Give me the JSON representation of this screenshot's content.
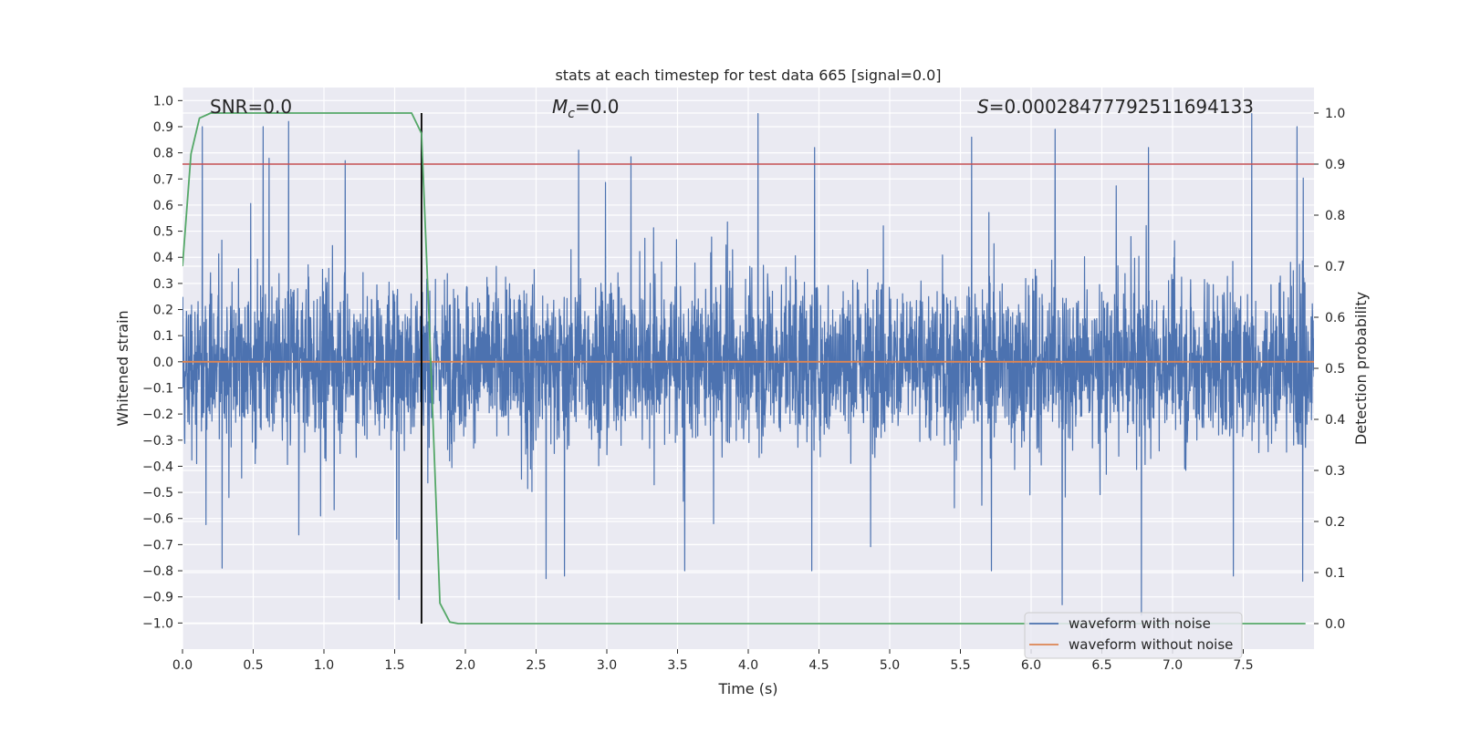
{
  "chart_data": {
    "type": "line",
    "title": "stats at each timestep for test data 665 [signal=0.0]",
    "xlabel": "Time (s)",
    "ylabel": "Whitened strain",
    "y2label": "Detection probability",
    "xlim": [
      0.0,
      8.0
    ],
    "ylim": [
      -1.1,
      1.05
    ],
    "y2lim": [
      -0.05,
      1.05
    ],
    "x_ticks": [
      0.0,
      0.5,
      1.0,
      1.5,
      2.0,
      2.5,
      3.0,
      3.5,
      4.0,
      4.5,
      5.0,
      5.5,
      6.0,
      6.5,
      7.0,
      7.5
    ],
    "y_ticks": [
      -1.0,
      -0.9,
      -0.8,
      -0.7,
      -0.6,
      -0.5,
      -0.4,
      -0.3,
      -0.2,
      -0.1,
      0.0,
      0.1,
      0.2,
      0.3,
      0.4,
      0.5,
      0.6,
      0.7,
      0.8,
      0.9,
      1.0
    ],
    "y2_ticks": [
      0.0,
      0.1,
      0.2,
      0.3,
      0.4,
      0.5,
      0.6,
      0.7,
      0.8,
      0.9,
      1.0
    ],
    "grid": true,
    "annotations": {
      "snr": "SNR=0.0",
      "mc_symbol": "M",
      "mc_sub": "c",
      "mc_value": "=0.0",
      "s_symbol": "S",
      "s_value": "=0.00028477792511694133"
    },
    "legend": {
      "placement": "lower-right",
      "entries": [
        "waveform with noise",
        "waveform without noise"
      ]
    },
    "series": [
      {
        "name": "waveform with noise",
        "axis": "left",
        "color": "#4c72b0",
        "sample_rate_hz": 2048,
        "approx_range": [
          -0.97,
          0.95
        ],
        "peaks": [
          [
            0.14,
            0.9
          ],
          [
            0.57,
            0.9
          ],
          [
            1.15,
            0.77
          ],
          [
            2.8,
            0.81
          ],
          [
            4.07,
            0.95
          ],
          [
            4.47,
            0.82
          ],
          [
            5.58,
            0.86
          ],
          [
            6.17,
            0.89
          ],
          [
            6.83,
            0.82
          ],
          [
            7.56,
            0.95
          ],
          [
            7.88,
            0.9
          ]
        ],
        "troughs": [
          [
            0.28,
            -0.79
          ],
          [
            1.53,
            -0.91
          ],
          [
            2.57,
            -0.83
          ],
          [
            2.7,
            -0.82
          ],
          [
            3.55,
            -0.8
          ],
          [
            4.45,
            -0.8
          ],
          [
            5.72,
            -0.8
          ],
          [
            6.22,
            -0.93
          ],
          [
            6.78,
            -0.97
          ],
          [
            7.43,
            -0.82
          ],
          [
            7.92,
            -0.84
          ]
        ]
      },
      {
        "name": "waveform without noise",
        "axis": "left",
        "color": "#dd8452",
        "x": [
          0.0,
          8.0
        ],
        "y": [
          0.0,
          0.0
        ]
      },
      {
        "name": "Detection probability",
        "axis": "right",
        "color": "#55a868",
        "x": [
          0.0,
          0.06,
          0.12,
          0.2,
          0.3,
          0.5,
          1.0,
          1.5,
          1.62,
          1.69,
          1.75,
          1.82,
          1.89,
          1.95,
          2.5,
          7.94
        ],
        "y": [
          0.7,
          0.92,
          0.99,
          1.0,
          1.0,
          1.0,
          1.0,
          1.0,
          1.0,
          0.96,
          0.55,
          0.04,
          0.003,
          0.0,
          0.0,
          0.0
        ]
      },
      {
        "name": "threshold",
        "axis": "right",
        "color": "#c44e52",
        "x": [
          0.0,
          8.0
        ],
        "y": [
          0.9,
          0.9
        ]
      }
    ],
    "vertical_line": {
      "x": 1.69,
      "color": "#000000",
      "y_range": [
        0.0,
        1.0
      ],
      "axis": "right"
    }
  }
}
